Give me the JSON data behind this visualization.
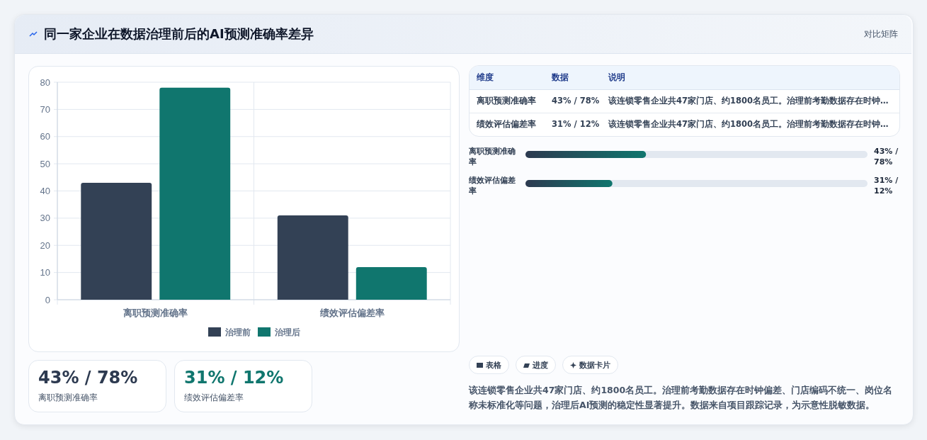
{
  "chart_data": [
    {
      "type": "bar",
      "title": "同一家企业在数据治理前后的AI预测准确率差异",
      "categories": [
        "离职预测准确率",
        "绩效评估偏差率"
      ],
      "series": [
        {
          "name": "治理前",
          "color": "#334155",
          "values": [
            43,
            31
          ]
        },
        {
          "name": "治理后",
          "color": "#10766e",
          "values": [
            78,
            12
          ]
        }
      ],
      "ylim": [
        0,
        80
      ],
      "yticks": [
        0,
        10,
        20,
        30,
        40,
        50,
        60,
        70,
        80
      ],
      "grid": true,
      "legend": "bottom"
    },
    {
      "type": "bar",
      "orientation": "horizontal",
      "categories": [
        "离职预测准确率",
        "绩效评估偏差率"
      ],
      "values": [
        43,
        31
      ],
      "xlim": [
        0,
        122
      ],
      "value_labels": [
        "43% / 78%",
        "31% / 12%"
      ],
      "color": "#10766e"
    },
    {
      "type": "other",
      "annotations": [
        "对比矩阵",
        "维度",
        "数据",
        "说明",
        "离职预测准确率",
        "43% / 78%",
        "该连锁零售企业共47家门店、约1800名员工。治理前考勤数据存在时钟…",
        "绩效评估偏差率",
        "31% / 12%",
        "该连锁零售企业共47家门店、约1800名员工。治理前考勤数据存在时钟…",
        "43% / 78%",
        "离职预测准确率",
        "31% / 12%",
        "绩效评估偏差率",
        "表格",
        "进度",
        "数据卡片",
        "该连锁零售企业共47家门店、约1800名员工。治理前考勤数据存在时钟偏差、门店编码不统一、岗位名称未标准化等问题，治理后AI预测的稳定性显著提升。数据来自项目跟踪记录，为示意性脱敏数据。"
      ]
    }
  ]
}
